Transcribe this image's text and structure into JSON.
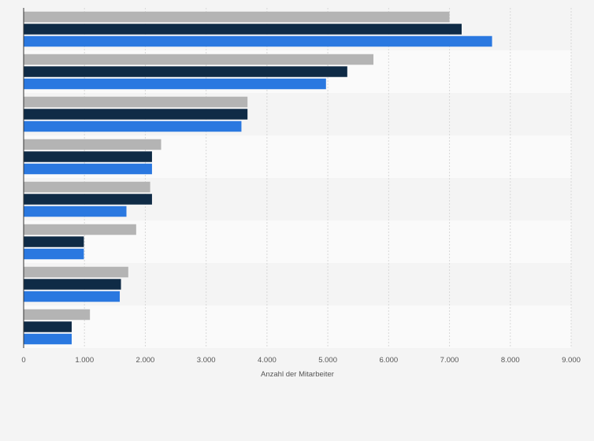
{
  "chart_data": {
    "type": "bar",
    "orientation": "horizontal",
    "title": "",
    "xlabel": "Anzahl der Mitarbeiter",
    "ylabel": "",
    "xlim": [
      0,
      9000
    ],
    "x_ticks": [
      0,
      1000,
      2000,
      3000,
      4000,
      5000,
      6000,
      7000,
      8000,
      9000
    ],
    "x_tick_labels": [
      "0",
      "1.000",
      "2.000",
      "3.000",
      "4.000",
      "5.000",
      "6.000",
      "7.000",
      "8.000",
      "9.000"
    ],
    "grid": true,
    "legend": "none",
    "categories": [
      "",
      "",
      "",
      "",
      "",
      "",
      "",
      ""
    ],
    "series": [
      {
        "color": "#b4b4b4",
        "values": [
          7000,
          5750,
          3680,
          2260,
          2080,
          1850,
          1720,
          1090
        ]
      },
      {
        "color": "#0f2b46",
        "values": [
          7200,
          5320,
          3680,
          2110,
          2110,
          990,
          1600,
          790
        ]
      },
      {
        "color": "#2a78e0",
        "values": [
          7700,
          4970,
          3580,
          2110,
          1690,
          990,
          1580,
          790
        ]
      }
    ]
  }
}
